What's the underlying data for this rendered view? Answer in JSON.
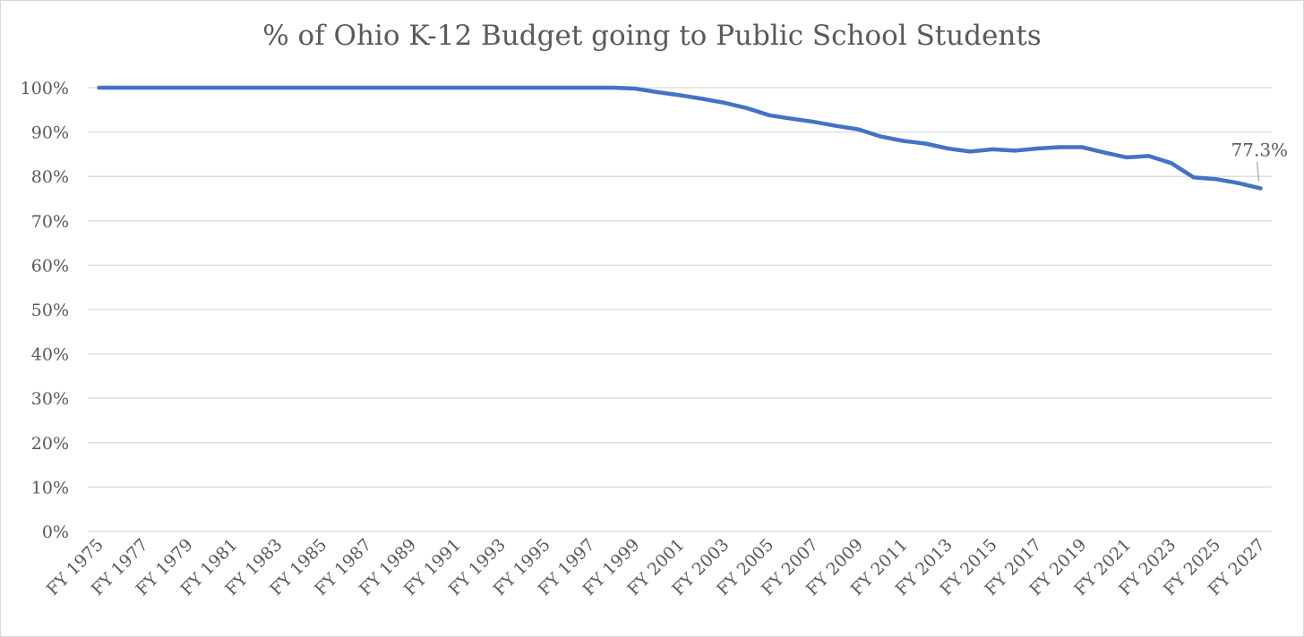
{
  "chart_data": {
    "type": "line",
    "title": "% of Ohio K-12 Budget going to Public School Students",
    "xlabel": "",
    "ylabel": "",
    "ylim": [
      0,
      100
    ],
    "y_ticks": [
      "0%",
      "10%",
      "20%",
      "30%",
      "40%",
      "50%",
      "60%",
      "70%",
      "80%",
      "90%",
      "100%"
    ],
    "y_tick_values": [
      0,
      10,
      20,
      30,
      40,
      50,
      60,
      70,
      80,
      90,
      100
    ],
    "grid": true,
    "legend": "none",
    "line_color": "#4472c4",
    "grid_color": "#d9d9d9",
    "categories": [
      "FY 1975",
      "FY 1976",
      "FY 1977",
      "FY 1978",
      "FY 1979",
      "FY 1980",
      "FY 1981",
      "FY 1982",
      "FY 1983",
      "FY 1984",
      "FY 1985",
      "FY 1986",
      "FY 1987",
      "FY 1988",
      "FY 1989",
      "FY 1990",
      "FY 1991",
      "FY 1992",
      "FY 1993",
      "FY 1994",
      "FY 1995",
      "FY 1996",
      "FY 1997",
      "FY 1998",
      "FY 1999",
      "FY 2000",
      "FY 2001",
      "FY 2002",
      "FY 2003",
      "FY 2004",
      "FY 2005",
      "FY 2006",
      "FY 2007",
      "FY 2008",
      "FY 2009",
      "FY 2010",
      "FY 2011",
      "FY 2012",
      "FY 2013",
      "FY 2014",
      "FY 2015",
      "FY 2016",
      "FY 2017",
      "FY 2018",
      "FY 2019",
      "FY 2020",
      "FY 2021",
      "FY 2022",
      "FY 2023",
      "FY 2024",
      "FY 2025",
      "FY 2026",
      "FY 2027"
    ],
    "tick_labels": [
      "FY 1975",
      "FY 1977",
      "FY 1979",
      "FY 1981",
      "FY 1983",
      "FY 1985",
      "FY 1987",
      "FY 1989",
      "FY 1991",
      "FY 1993",
      "FY 1995",
      "FY 1997",
      "FY 1999",
      "FY 2001",
      "FY 2003",
      "FY 2005",
      "FY 2007",
      "FY 2009",
      "FY 2011",
      "FY 2013",
      "FY 2015",
      "FY 2017",
      "FY 2019",
      "FY 2021",
      "FY 2023",
      "FY 2025",
      "FY 2027"
    ],
    "series": [
      {
        "values": [
          100,
          100,
          100,
          100,
          100,
          100,
          100,
          100,
          100,
          100,
          100,
          100,
          100,
          100,
          100,
          100,
          100,
          100,
          100,
          100,
          100,
          100,
          100,
          100,
          99.8,
          99,
          98.3,
          97.5,
          96.6,
          95.4,
          93.8,
          93,
          92.3,
          91.4,
          90.6,
          89,
          88,
          87.4,
          86.3,
          85.6,
          86.1,
          85.8,
          86.3,
          86.6,
          86.6,
          85.4,
          84.3,
          84.6,
          83,
          79.8,
          79.4,
          78.5,
          77.3
        ]
      }
    ],
    "annotations": [
      {
        "category": "FY 2027",
        "value": 77.3,
        "text": "77.3%"
      }
    ]
  }
}
